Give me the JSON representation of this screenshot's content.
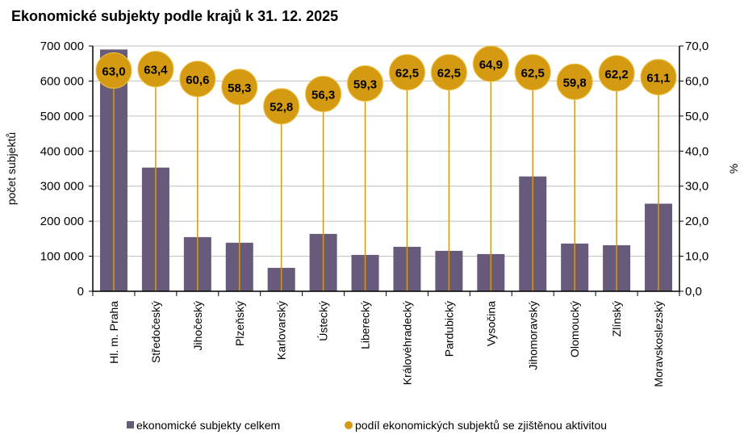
{
  "chart_data": {
    "type": "bar",
    "title": "Ekonomické subjekty podle krajů k 31. 12. 2025",
    "categories": [
      "Hl. m. Praha",
      "Středočeský",
      "Jihočeský",
      "Plzeňský",
      "Karlovarský",
      "Ústecký",
      "Liberecký",
      "Královéhradecký",
      "Pardubický",
      "Vysočina",
      "Jihomoravský",
      "Olomoucký",
      "Zlínský",
      "Moravskoslezský"
    ],
    "series": [
      {
        "name": "ekonomické subjekty celkem",
        "axis": "left",
        "type": "bar",
        "color": "#675a7a",
        "values": [
          690000,
          353000,
          154600,
          138500,
          66900,
          163800,
          103800,
          126900,
          115400,
          106200,
          327700,
          136200,
          131500,
          250000
        ]
      },
      {
        "name": "podíl ekonomických subjektů se zjištěnou aktivitou",
        "axis": "right",
        "type": "dot",
        "color": "#d49a12",
        "values": [
          63.0,
          63.4,
          60.6,
          58.3,
          52.8,
          56.3,
          59.3,
          62.5,
          62.5,
          64.9,
          62.5,
          59.8,
          62.2,
          61.1
        ],
        "labels": [
          "63,0",
          "63,4",
          "60,6",
          "58,3",
          "52,8",
          "56,3",
          "59,3",
          "62,5",
          "62,5",
          "64,9",
          "62,5",
          "59,8",
          "62,2",
          "61,1"
        ]
      }
    ],
    "ylabel": "počet subjektů",
    "ylabel_right": "%",
    "ylim": [
      0,
      700000
    ],
    "ylim_right": [
      0,
      70
    ],
    "yticks": [
      "0",
      "100 000",
      "200 000",
      "300 000",
      "400 000",
      "500 000",
      "600 000",
      "700 000"
    ],
    "yticks_right": [
      "0,0",
      "10,0",
      "20,0",
      "30,0",
      "40,0",
      "50,0",
      "60,0",
      "70,0"
    ],
    "grid": true,
    "legend": "bottom"
  }
}
